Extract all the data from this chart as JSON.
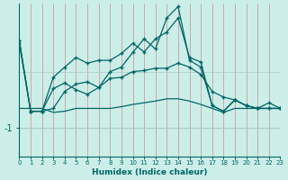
{
  "xlabel": "Humidex (Indice chaleur)",
  "bg_color": "#cceee8",
  "line_color": "#006666",
  "grid_color_v": "#c8a0a0",
  "grid_color_h": "#a8c8c4",
  "xlim": [
    0,
    23
  ],
  "ylim": [
    -1.5,
    1.2
  ],
  "ytick_val": -1.0,
  "series1_x": [
    0,
    1,
    2,
    3,
    4,
    5,
    6,
    7,
    8,
    9,
    10,
    11,
    12,
    13,
    14,
    15,
    16,
    17,
    18,
    19,
    20,
    21,
    22,
    23
  ],
  "series1_y": [
    0.55,
    -0.7,
    -0.7,
    -0.3,
    -0.2,
    -0.32,
    -0.4,
    -0.28,
    -0.12,
    -0.1,
    0.0,
    0.02,
    0.06,
    0.06,
    0.15,
    0.08,
    -0.05,
    -0.35,
    -0.45,
    -0.5,
    -0.6,
    -0.65,
    -0.65,
    -0.65
  ],
  "series2_x": [
    0,
    1,
    2,
    3,
    4,
    5,
    6,
    7,
    8,
    9,
    10,
    11,
    12,
    13,
    14,
    15,
    16,
    17,
    18,
    19,
    20,
    21,
    22,
    23
  ],
  "series2_y": [
    0.55,
    -0.7,
    -0.7,
    -0.1,
    0.08,
    0.25,
    0.15,
    0.2,
    0.2,
    0.32,
    0.5,
    0.35,
    0.58,
    0.7,
    0.95,
    0.25,
    0.17,
    -0.6,
    -0.7,
    -0.5,
    -0.6,
    -0.65,
    -0.65,
    -0.65
  ],
  "series3_x": [
    0,
    1,
    2,
    3,
    4,
    5,
    6,
    7,
    8,
    9,
    10,
    11,
    12,
    13,
    14,
    15,
    16,
    17,
    18,
    19,
    20,
    21,
    22,
    23
  ],
  "series3_y": [
    0.5,
    -0.7,
    -0.7,
    -0.65,
    -0.35,
    -0.22,
    -0.18,
    -0.28,
    0.0,
    0.08,
    0.34,
    0.58,
    0.4,
    0.95,
    1.15,
    0.2,
    0.08,
    -0.6,
    -0.7,
    -0.5,
    -0.6,
    -0.65,
    -0.55,
    -0.65
  ],
  "series4_x": [
    0,
    1,
    2,
    3,
    4,
    5,
    6,
    7,
    8,
    9,
    10,
    11,
    12,
    13,
    14,
    15,
    16,
    17,
    18,
    19,
    20,
    21,
    22,
    23
  ],
  "series4_y": [
    -0.65,
    -0.65,
    -0.65,
    -0.72,
    -0.7,
    -0.65,
    -0.65,
    -0.65,
    -0.65,
    -0.62,
    -0.58,
    -0.55,
    -0.52,
    -0.48,
    -0.48,
    -0.52,
    -0.58,
    -0.65,
    -0.72,
    -0.65,
    -0.65,
    -0.65,
    -0.65,
    -0.65
  ]
}
